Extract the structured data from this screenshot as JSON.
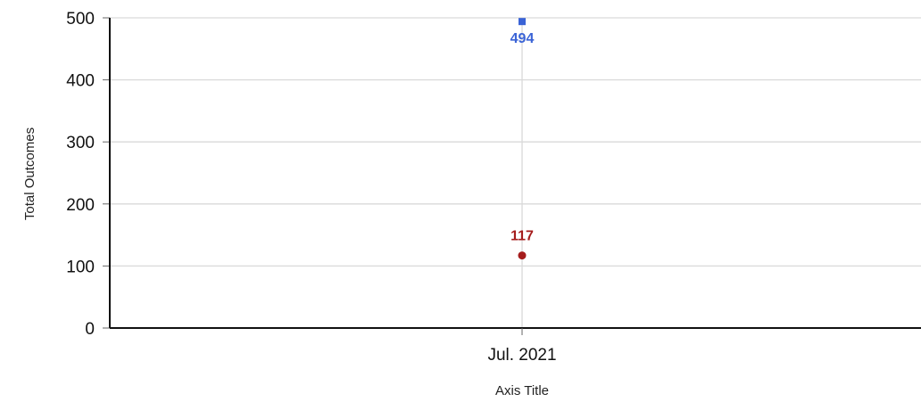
{
  "chart_data": {
    "type": "scatter",
    "title": "",
    "xlabel": "Axis Title",
    "ylabel": "Total Outcomes",
    "categories": [
      "Jul. 2021"
    ],
    "ylim": [
      0,
      500
    ],
    "yticks": [
      0,
      100,
      200,
      300,
      400,
      500
    ],
    "grid": true,
    "legend": "none",
    "series": [
      {
        "values": [
          494
        ],
        "color": "#3a63d6",
        "marker": "square",
        "labels": [
          "494"
        ]
      },
      {
        "values": [
          117
        ],
        "color": "#a51c1c",
        "marker": "circle",
        "labels": [
          "117"
        ]
      }
    ]
  }
}
